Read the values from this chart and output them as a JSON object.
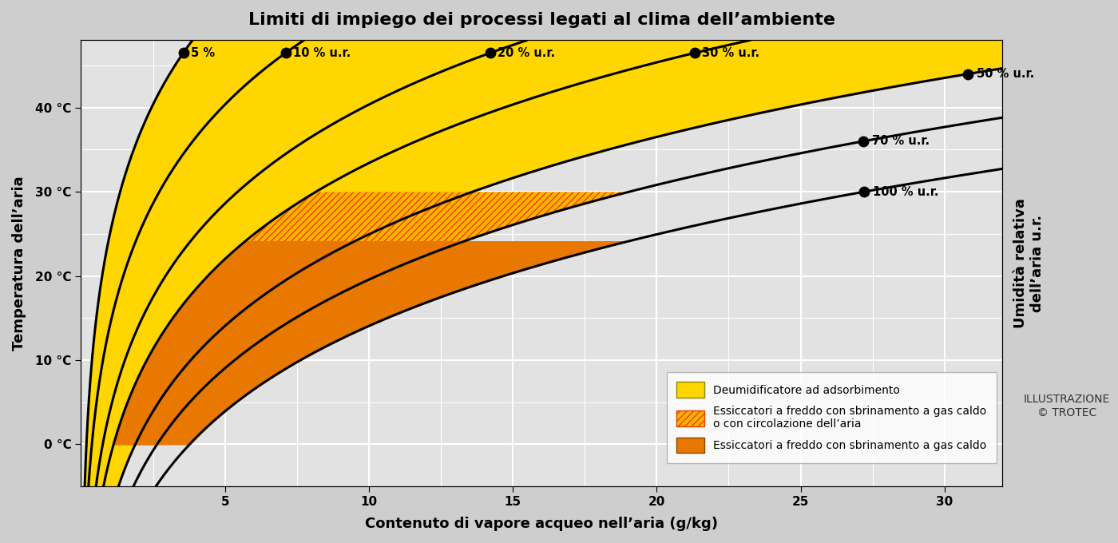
{
  "title": "Limiti di impiego dei processi legati al clima dell’ambiente",
  "xlabel": "Contenuto di vapore acqueo nell’aria (g/kg)",
  "ylabel": "Temperatura dell’aria",
  "ylabel_right": "Umidità relativa\ndell’aria u.r.",
  "xmin": 0,
  "xmax": 32,
  "ymin": -5,
  "ymax": 48,
  "xticks": [
    5,
    10,
    15,
    20,
    25,
    30
  ],
  "yticks": [
    0,
    10,
    20,
    30,
    40
  ],
  "rh_curves": [
    5,
    10,
    20,
    30,
    50,
    70,
    100
  ],
  "rh_top_labels": [
    {
      "rh": 5,
      "label": "5 %"
    },
    {
      "rh": 10,
      "label": "10 % u.r."
    },
    {
      "rh": 20,
      "label": "20 % u.r."
    },
    {
      "rh": 30,
      "label": "30 % u.r."
    }
  ],
  "rh_right_labels": [
    {
      "rh": 50,
      "label": "50 % u.r.",
      "dot_T": 44.0
    },
    {
      "rh": 70,
      "label": "70 % u.r.",
      "dot_T": 36.0
    },
    {
      "rh": 100,
      "label": "100 % u.r.",
      "dot_T": 30.0
    }
  ],
  "bg_color": "#cecece",
  "plot_bg_color": "#e2e2e2",
  "grid_color": "#ffffff",
  "yellow_color": "#FFD600",
  "orange_hatched_bg": "#FFB300",
  "orange_solid_color": "#E87800",
  "hatch_edge_color": "#E84000",
  "x_cutoff_hatched": 19.0,
  "legend_items": [
    {
      "label": "Deumidificatore ad adsorbimento",
      "facecolor": "#FFD600",
      "edgecolor": "#888800",
      "hatch": null
    },
    {
      "label": "Essiccatori a freddo con sbrinamento a gas caldo\no con circolazione dell’aria",
      "facecolor": "#FFB300",
      "edgecolor": "#E84000",
      "hatch": "////"
    },
    {
      "label": "Essiccatori a freddo con sbrinamento a gas caldo",
      "facecolor": "#E87800",
      "edgecolor": "#884400",
      "hatch": null
    }
  ],
  "trotec_text": "ILLUSTRAZIONE\n© TROTEC"
}
